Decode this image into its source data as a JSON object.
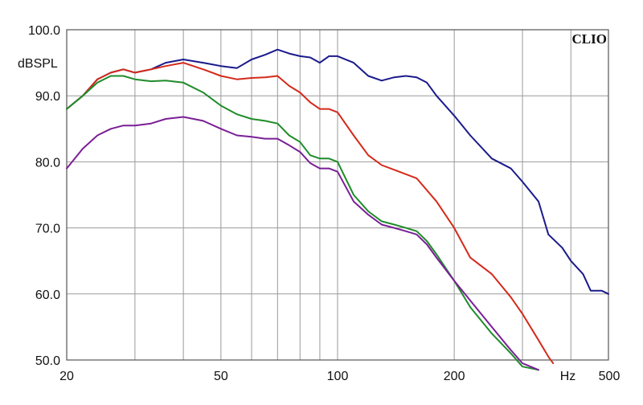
{
  "chart_data": {
    "type": "line",
    "brand": "CLIO",
    "ylabel": "dBSPL",
    "xunit": "Hz",
    "x_scale": "log",
    "xlim": [
      20,
      500
    ],
    "ylim": [
      50,
      100
    ],
    "grid": true,
    "y_ticks": [
      {
        "value": 100,
        "label": "100.0"
      },
      {
        "value": 90,
        "label": "90.0"
      },
      {
        "value": 80,
        "label": "80.0"
      },
      {
        "value": 70,
        "label": "70.0"
      },
      {
        "value": 60,
        "label": "60.0"
      },
      {
        "value": 50,
        "label": "50.0"
      }
    ],
    "x_ticks": [
      {
        "value": 20,
        "label": "20"
      },
      {
        "value": 50,
        "label": "50"
      },
      {
        "value": 100,
        "label": "100"
      },
      {
        "value": 200,
        "label": "200"
      },
      {
        "value": 500,
        "label": "500"
      }
    ],
    "x_grid": [
      20,
      30,
      40,
      50,
      60,
      70,
      80,
      90,
      100,
      200,
      300,
      400,
      500
    ],
    "y_grid": [
      50,
      60,
      70,
      80,
      90,
      100
    ],
    "series": [
      {
        "color": "#1a1a8c",
        "points": [
          [
            20,
            88
          ],
          [
            22,
            90
          ],
          [
            24,
            92.5
          ],
          [
            26,
            93.5
          ],
          [
            28,
            94
          ],
          [
            30,
            93.5
          ],
          [
            33,
            94
          ],
          [
            36,
            95
          ],
          [
            40,
            95.5
          ],
          [
            45,
            95
          ],
          [
            50,
            94.5
          ],
          [
            55,
            94.2
          ],
          [
            60,
            95.5
          ],
          [
            65,
            96.2
          ],
          [
            70,
            97
          ],
          [
            75,
            96.4
          ],
          [
            80,
            96
          ],
          [
            85,
            95.8
          ],
          [
            90,
            95
          ],
          [
            95,
            96
          ],
          [
            100,
            96
          ],
          [
            110,
            95
          ],
          [
            120,
            93
          ],
          [
            130,
            92.3
          ],
          [
            140,
            92.8
          ],
          [
            150,
            93
          ],
          [
            160,
            92.8
          ],
          [
            170,
            92
          ],
          [
            180,
            90
          ],
          [
            200,
            87
          ],
          [
            220,
            84
          ],
          [
            250,
            80.5
          ],
          [
            280,
            79
          ],
          [
            300,
            77
          ],
          [
            330,
            74
          ],
          [
            350,
            69
          ],
          [
            380,
            67
          ],
          [
            400,
            65
          ],
          [
            430,
            63
          ],
          [
            450,
            60.5
          ],
          [
            480,
            60.5
          ],
          [
            500,
            60
          ]
        ]
      },
      {
        "color": "#d42a1a",
        "points": [
          [
            20,
            88
          ],
          [
            22,
            90
          ],
          [
            24,
            92.5
          ],
          [
            26,
            93.5
          ],
          [
            28,
            94
          ],
          [
            30,
            93.5
          ],
          [
            33,
            94
          ],
          [
            36,
            94.5
          ],
          [
            40,
            95
          ],
          [
            45,
            94
          ],
          [
            50,
            93
          ],
          [
            55,
            92.5
          ],
          [
            60,
            92.7
          ],
          [
            65,
            92.8
          ],
          [
            70,
            93
          ],
          [
            75,
            91.5
          ],
          [
            80,
            90.5
          ],
          [
            85,
            89
          ],
          [
            90,
            88
          ],
          [
            95,
            88
          ],
          [
            100,
            87.5
          ],
          [
            110,
            84
          ],
          [
            120,
            81
          ],
          [
            130,
            79.5
          ],
          [
            140,
            78.8
          ],
          [
            160,
            77.5
          ],
          [
            180,
            74
          ],
          [
            200,
            70
          ],
          [
            220,
            65.5
          ],
          [
            250,
            63
          ],
          [
            280,
            59.5
          ],
          [
            300,
            57
          ],
          [
            330,
            53
          ],
          [
            350,
            50.5
          ],
          [
            360,
            49.5
          ]
        ]
      },
      {
        "color": "#1f8c2a",
        "points": [
          [
            20,
            88
          ],
          [
            22,
            90
          ],
          [
            24,
            92
          ],
          [
            26,
            93
          ],
          [
            28,
            93
          ],
          [
            30,
            92.5
          ],
          [
            33,
            92.2
          ],
          [
            36,
            92.3
          ],
          [
            40,
            92
          ],
          [
            45,
            90.5
          ],
          [
            50,
            88.5
          ],
          [
            55,
            87.2
          ],
          [
            60,
            86.5
          ],
          [
            65,
            86.2
          ],
          [
            70,
            85.8
          ],
          [
            75,
            84
          ],
          [
            80,
            83
          ],
          [
            85,
            81
          ],
          [
            90,
            80.5
          ],
          [
            95,
            80.5
          ],
          [
            100,
            80
          ],
          [
            110,
            75
          ],
          [
            120,
            72.5
          ],
          [
            130,
            71
          ],
          [
            140,
            70.5
          ],
          [
            150,
            70
          ],
          [
            160,
            69.5
          ],
          [
            170,
            68
          ],
          [
            180,
            66
          ],
          [
            200,
            62
          ],
          [
            220,
            58
          ],
          [
            250,
            54
          ],
          [
            280,
            51
          ],
          [
            300,
            49
          ],
          [
            330,
            48.5
          ]
        ]
      },
      {
        "color": "#7a1f96",
        "points": [
          [
            20,
            79
          ],
          [
            22,
            82
          ],
          [
            24,
            84
          ],
          [
            26,
            85
          ],
          [
            28,
            85.5
          ],
          [
            30,
            85.5
          ],
          [
            33,
            85.8
          ],
          [
            36,
            86.5
          ],
          [
            40,
            86.8
          ],
          [
            45,
            86.2
          ],
          [
            50,
            85
          ],
          [
            55,
            84
          ],
          [
            60,
            83.8
          ],
          [
            65,
            83.5
          ],
          [
            70,
            83.5
          ],
          [
            75,
            82.5
          ],
          [
            80,
            81.5
          ],
          [
            85,
            79.8
          ],
          [
            90,
            79
          ],
          [
            95,
            79
          ],
          [
            100,
            78.5
          ],
          [
            110,
            74
          ],
          [
            120,
            72
          ],
          [
            130,
            70.5
          ],
          [
            140,
            70
          ],
          [
            150,
            69.5
          ],
          [
            160,
            69
          ],
          [
            170,
            67.5
          ],
          [
            180,
            65.5
          ],
          [
            200,
            62
          ],
          [
            220,
            59
          ],
          [
            250,
            55
          ],
          [
            280,
            51.5
          ],
          [
            300,
            49.5
          ],
          [
            330,
            48.5
          ]
        ]
      }
    ]
  }
}
